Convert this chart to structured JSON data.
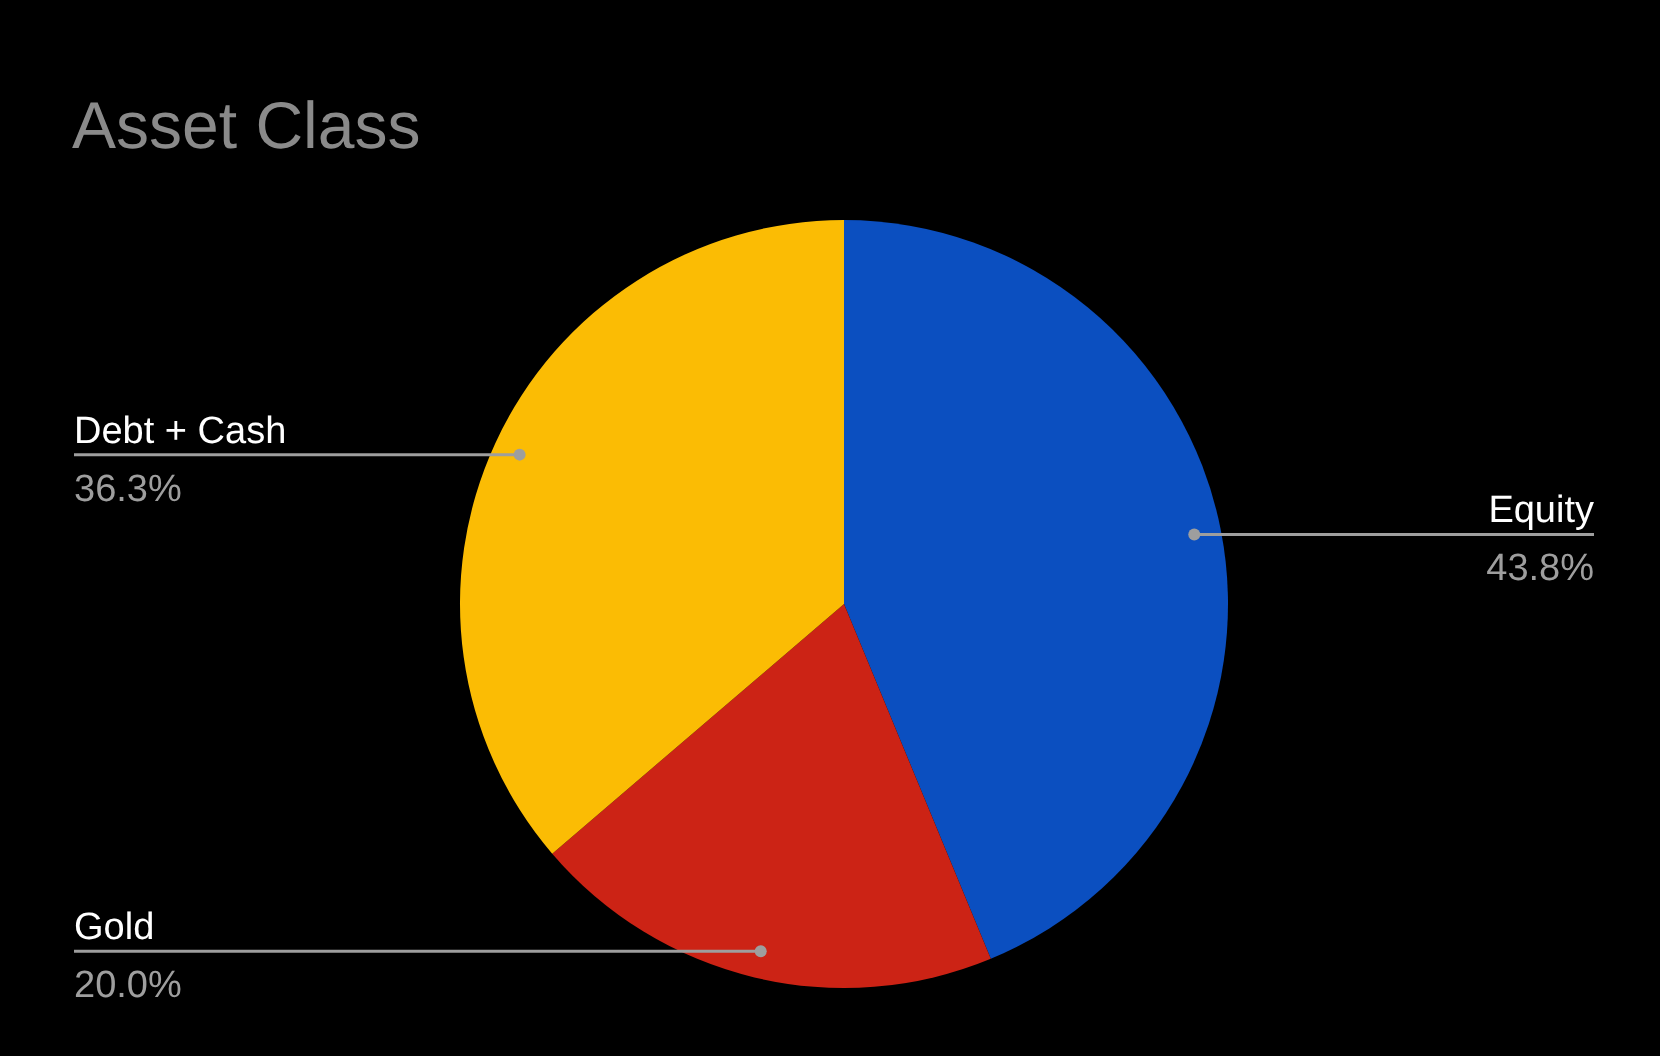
{
  "chart_data": {
    "type": "pie",
    "title": "Asset Class",
    "categories": [
      "Equity",
      "Gold",
      "Debt + Cash"
    ],
    "values": [
      43.8,
      20.0,
      36.3
    ],
    "colors": [
      "#0b4fc0",
      "#cc2315",
      "#fbbc04"
    ],
    "value_labels": [
      "43.8%",
      "20.0%",
      "36.3%"
    ],
    "legend": false
  }
}
